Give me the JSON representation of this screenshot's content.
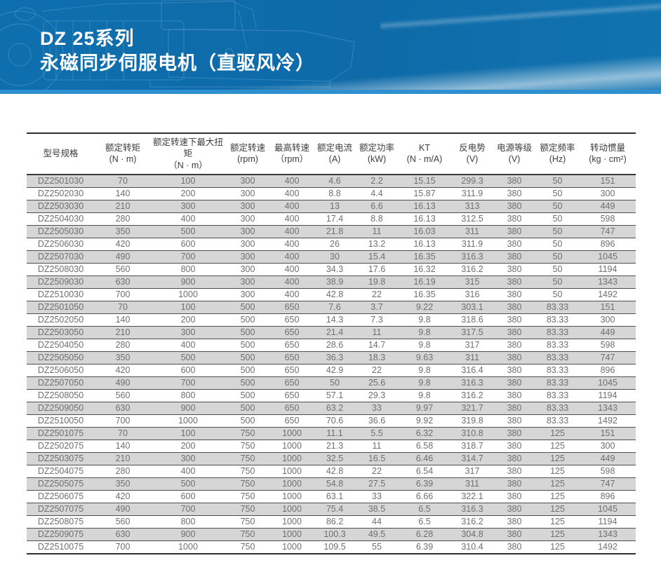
{
  "banner": {
    "title_line1": "DZ 25系列",
    "title_line2": "永磁同步伺服电机（直驱风冷）"
  },
  "colors": {
    "banner_blue": "#0f6fae",
    "banner_strip_blue": "#2f90cf",
    "row_stripe_gray": "#d6d6d6"
  },
  "chart_data": {
    "type": "table",
    "title": "DZ 25系列 永磁同步伺服电机（直驱风冷）规格表"
  },
  "table": {
    "columns": [
      {
        "label": "型号规格",
        "unit": ""
      },
      {
        "label": "额定转矩",
        "unit": "(N · m)"
      },
      {
        "label": "额定转速下最大扭矩",
        "unit": "（N · m）"
      },
      {
        "label": "额定转速",
        "unit": "(rpm)"
      },
      {
        "label": "最高转速",
        "unit": "（rpm）"
      },
      {
        "label": "额定电流",
        "unit": "(A)"
      },
      {
        "label": "额定功率",
        "unit": "(kW)"
      },
      {
        "label": "KT",
        "unit": "(N · m/A)"
      },
      {
        "label": "反电势",
        "unit": "(V)"
      },
      {
        "label": "电源等级",
        "unit": "(V)"
      },
      {
        "label": "额定频率",
        "unit": "(Hz)"
      },
      {
        "label": "转动惯量",
        "unit": "(kg · cm²)"
      }
    ],
    "rows": [
      [
        "DZ2501030",
        70,
        100,
        300,
        400,
        4.6,
        2.2,
        15.15,
        299.3,
        380,
        50,
        151
      ],
      [
        "DZ2502030",
        140,
        200,
        300,
        400,
        8.8,
        4.4,
        15.87,
        311.9,
        380,
        50,
        300
      ],
      [
        "DZ2503030",
        210,
        300,
        300,
        400,
        13,
        6.6,
        16.13,
        313,
        380,
        50,
        449
      ],
      [
        "DZ2504030",
        280,
        400,
        300,
        400,
        17.4,
        8.8,
        16.13,
        312.5,
        380,
        50,
        598
      ],
      [
        "DZ2505030",
        350,
        500,
        300,
        400,
        21.8,
        11,
        16.03,
        311,
        380,
        50,
        747
      ],
      [
        "DZ2506030",
        420,
        600,
        300,
        400,
        26,
        13.2,
        16.13,
        311.9,
        380,
        50,
        896
      ],
      [
        "DZ2507030",
        490,
        700,
        300,
        400,
        30,
        15.4,
        16.35,
        316.3,
        380,
        50,
        1045
      ],
      [
        "DZ2508030",
        560,
        800,
        300,
        400,
        34.3,
        17.6,
        16.32,
        316.2,
        380,
        50,
        1194
      ],
      [
        "DZ2509030",
        630,
        900,
        300,
        400,
        38.9,
        19.8,
        16.19,
        315,
        380,
        50,
        1343
      ],
      [
        "DZ2510030",
        700,
        1000,
        300,
        400,
        42.8,
        22,
        16.35,
        316,
        380,
        50,
        1492
      ],
      [
        "DZ2501050",
        70,
        100,
        500,
        650,
        7.6,
        3.7,
        9.22,
        303.1,
        380,
        83.33,
        151
      ],
      [
        "DZ2502050",
        140,
        200,
        500,
        650,
        14.3,
        7.3,
        9.8,
        318.6,
        380,
        83.33,
        300
      ],
      [
        "DZ2503050",
        210,
        300,
        500,
        650,
        21.4,
        11,
        9.8,
        317.5,
        380,
        83.33,
        449
      ],
      [
        "DZ2504050",
        280,
        400,
        500,
        650,
        28.6,
        14.7,
        9.8,
        317,
        380,
        83.33,
        598
      ],
      [
        "DZ2505050",
        350,
        500,
        500,
        650,
        36.3,
        18.3,
        9.63,
        311,
        380,
        83.33,
        747
      ],
      [
        "DZ2506050",
        420,
        600,
        500,
        650,
        42.9,
        22,
        9.8,
        316.4,
        380,
        83.33,
        896
      ],
      [
        "DZ2507050",
        490,
        700,
        500,
        650,
        50,
        25.6,
        9.8,
        316.3,
        380,
        83.33,
        1045
      ],
      [
        "DZ2508050",
        560,
        800,
        500,
        650,
        57.1,
        29.3,
        9.8,
        316.2,
        380,
        83.33,
        1194
      ],
      [
        "DZ2509050",
        630,
        900,
        500,
        650,
        63.2,
        33,
        9.97,
        321.7,
        380,
        83.33,
        1343
      ],
      [
        "DZ2510050",
        700,
        1000,
        500,
        650,
        70.6,
        36.6,
        9.92,
        319.8,
        380,
        83.33,
        1492
      ],
      [
        "DZ2501075",
        70,
        100,
        750,
        1000,
        11.1,
        5.5,
        6.32,
        310.8,
        380,
        125,
        151
      ],
      [
        "DZ2502075",
        140,
        200,
        750,
        1000,
        21.3,
        11,
        6.58,
        318.7,
        380,
        125,
        300
      ],
      [
        "DZ2503075",
        210,
        300,
        750,
        1000,
        32.5,
        16.5,
        6.46,
        314.7,
        380,
        125,
        449
      ],
      [
        "DZ2504075",
        280,
        400,
        750,
        1000,
        42.8,
        22,
        6.54,
        317,
        380,
        125,
        598
      ],
      [
        "DZ2505075",
        350,
        500,
        750,
        1000,
        54.8,
        27.5,
        6.39,
        311,
        380,
        125,
        747
      ],
      [
        "DZ2506075",
        420,
        600,
        750,
        1000,
        63.1,
        33,
        6.66,
        322.1,
        380,
        125,
        896
      ],
      [
        "DZ2507075",
        490,
        700,
        750,
        1000,
        75.4,
        38.5,
        6.5,
        316.3,
        380,
        125,
        1045
      ],
      [
        "DZ2508075",
        560,
        800,
        750,
        1000,
        86.2,
        44,
        6.5,
        316.2,
        380,
        125,
        1194
      ],
      [
        "DZ2509075",
        630,
        900,
        750,
        1000,
        100.3,
        49.5,
        6.28,
        304.8,
        380,
        125,
        1343
      ],
      [
        "DZ2510075",
        700,
        1000,
        750,
        1000,
        109.5,
        55,
        6.39,
        310.4,
        380,
        125,
        1492
      ]
    ]
  }
}
